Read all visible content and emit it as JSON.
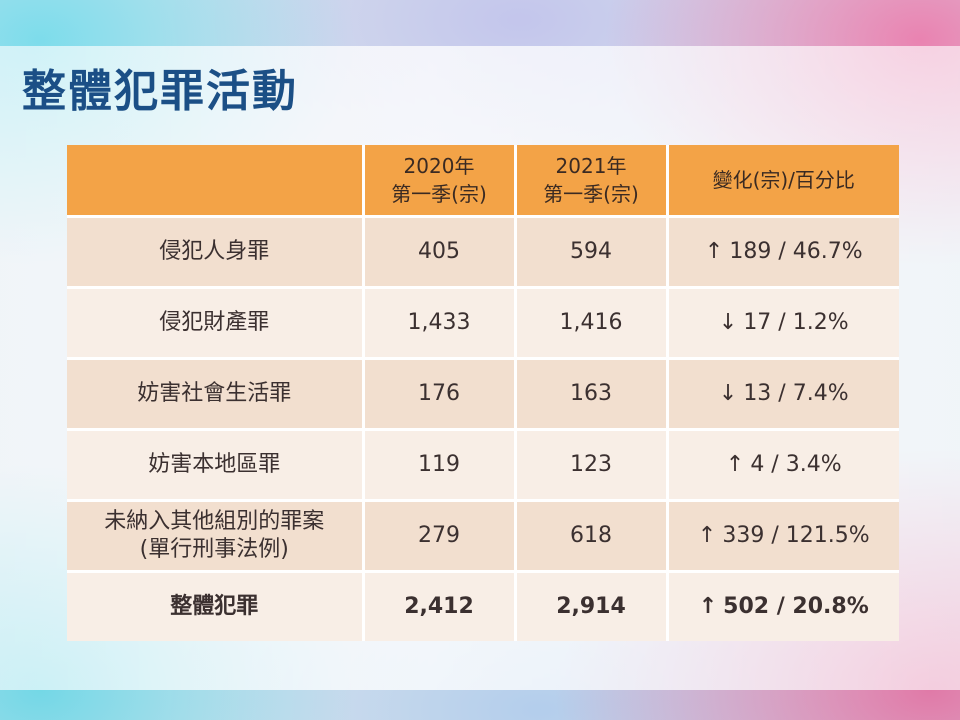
{
  "title": "整體犯罪活動",
  "table": {
    "headers": {
      "category": "",
      "q2020_line1": "2020年",
      "q2020_line2": "第一季(宗)",
      "q2021_line1": "2021年",
      "q2021_line2": "第一季(宗)",
      "change": "變化(宗)/百分比"
    },
    "rows": [
      {
        "category": "侵犯人身罪",
        "v2020": "405",
        "v2021": "594",
        "arrow": "↑",
        "change": "189 / 46.7%"
      },
      {
        "category": "侵犯財產罪",
        "v2020": "1,433",
        "v2021": "1,416",
        "arrow": "↓",
        "change": "17 / 1.2%"
      },
      {
        "category": "妨害社會生活罪",
        "v2020": "176",
        "v2021": "163",
        "arrow": "↓",
        "change": "13 / 7.4%"
      },
      {
        "category": "妨害本地區罪",
        "v2020": "119",
        "v2021": "123",
        "arrow": "↑",
        "change": "4 / 3.4%"
      },
      {
        "category": "未納入其他組別的罪案",
        "category_line2": "(單行刑事法例)",
        "v2020": "279",
        "v2021": "618",
        "arrow": "↑",
        "change": "339 / 121.5%"
      }
    ],
    "total": {
      "category": "整體犯罪",
      "v2020": "2,412",
      "v2021": "2,914",
      "arrow": "↑",
      "change": "502 / 20.8%"
    }
  },
  "colors": {
    "title": "#1b4f86",
    "header_bg": "#f3a347",
    "row_dark": "#f2dfcf",
    "row_light": "#f8eee6"
  }
}
